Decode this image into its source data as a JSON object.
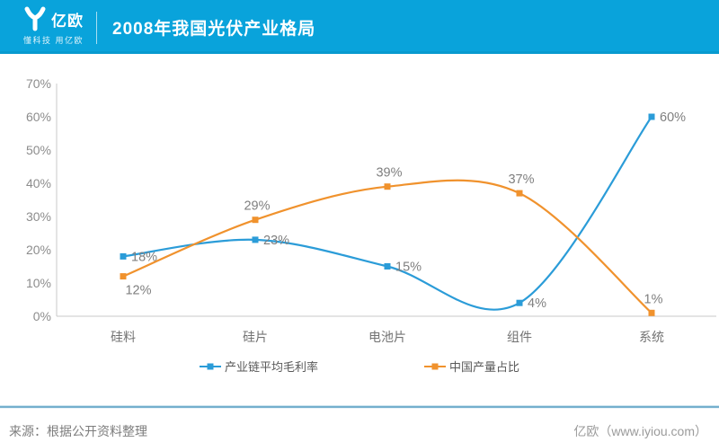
{
  "header": {
    "logo_text": "亿欧",
    "tagline": "懂科技 用亿欧",
    "title": "2008年我国光伏产业格局"
  },
  "footer": {
    "source": "来源：根据公开资料整理",
    "site": "亿欧（www.iyiou.com）"
  },
  "colors": {
    "header_bg": "#09a3db",
    "series_blue": "#2b9cd8",
    "series_orange": "#f0922d",
    "axis_line": "#c9c9c9",
    "tick_label": "#8c8c8c",
    "category_label": "#737373",
    "data_label": "#7f7f7f",
    "footer_divider": "#74afcd"
  },
  "chart_data": {
    "type": "line",
    "title": "2008年我国光伏产业格局",
    "categories": [
      "硅料",
      "硅片",
      "电池片",
      "组件",
      "系统"
    ],
    "series": [
      {
        "name": "产业链平均毛利率",
        "color": "#2b9cd8",
        "values": [
          18,
          23,
          15,
          4,
          60
        ],
        "data_labels": [
          "18%",
          "23%",
          "15%",
          "4%",
          "60%"
        ],
        "label_pos": [
          "right",
          "right",
          "right",
          "right",
          "right"
        ]
      },
      {
        "name": "中国产量占比",
        "color": "#f0922d",
        "values": [
          12,
          29,
          39,
          37,
          1
        ],
        "data_labels": [
          "12%",
          "29%",
          "39%",
          "37%",
          "1%"
        ],
        "label_pos": [
          "below",
          "above",
          "above",
          "above",
          "above"
        ]
      }
    ],
    "ylim": [
      0,
      70
    ],
    "ytick_labels": [
      "0%",
      "10%",
      "20%",
      "30%",
      "40%",
      "50%",
      "60%",
      "70%"
    ],
    "grid": false,
    "smooth": true,
    "legend_position": "bottom"
  }
}
